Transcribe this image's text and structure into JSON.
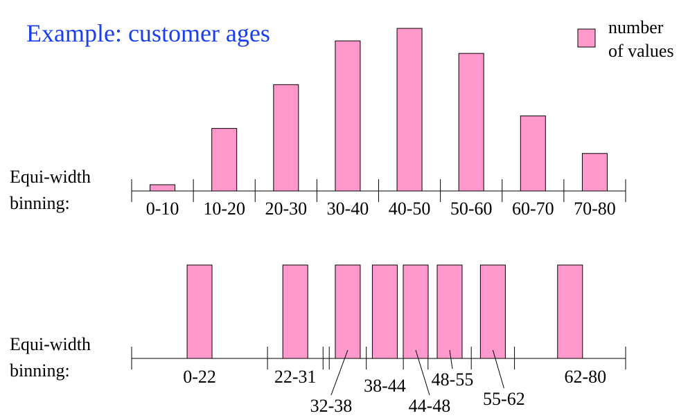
{
  "title": "Example: customer ages",
  "legend": {
    "label_line1": "number",
    "label_line2": "of values",
    "color": "#ff99cc"
  },
  "bar_color": "#ff99cc",
  "title_color": "#1a3ff0",
  "chart_data": [
    {
      "type": "bar",
      "row_label_line1": "Equi-width",
      "row_label_line2": "binning:",
      "categories": [
        "0-10",
        "10-20",
        "20-30",
        "30-40",
        "40-50",
        "50-60",
        "60-70",
        "70-80"
      ],
      "bins": [
        [
          0,
          10
        ],
        [
          10,
          20
        ],
        [
          20,
          30
        ],
        [
          30,
          40
        ],
        [
          40,
          50
        ],
        [
          50,
          60
        ],
        [
          60,
          70
        ],
        [
          70,
          80
        ]
      ],
      "values": [
        1,
        10,
        17,
        24,
        26,
        22,
        12,
        6
      ],
      "ylim": [
        0,
        26
      ],
      "xlim": [
        0,
        80
      ]
    },
    {
      "type": "bar",
      "row_label_line1": "Equi-width",
      "row_label_line2": "binning:",
      "categories": [
        "0-22",
        "22-31",
        "32-38",
        "38-44",
        "44-48",
        "48-55",
        "55-62",
        "62-80"
      ],
      "bins": [
        [
          0,
          22
        ],
        [
          22,
          31
        ],
        [
          32,
          38
        ],
        [
          38,
          44
        ],
        [
          44,
          48
        ],
        [
          48,
          55
        ],
        [
          55,
          62
        ],
        [
          62,
          80
        ]
      ],
      "values": [
        1,
        1,
        1,
        1,
        1,
        1,
        1,
        1
      ],
      "ylim": [
        0,
        1
      ],
      "xlim": [
        0,
        80
      ]
    }
  ]
}
